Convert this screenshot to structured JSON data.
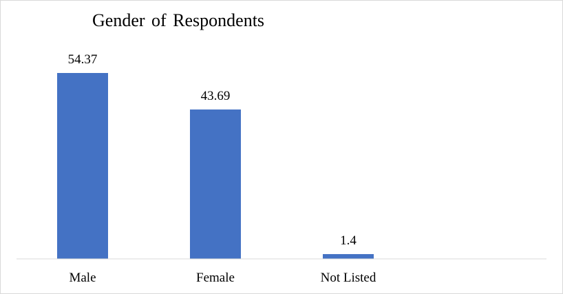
{
  "chart_data": {
    "type": "bar",
    "title": "Gender of Respondents",
    "categories": [
      "Male",
      "Female",
      "Not Listed"
    ],
    "values": [
      54.37,
      43.69,
      1.4
    ],
    "data_labels": [
      "54.37",
      "43.69",
      "1.4"
    ],
    "xlabel": "",
    "ylabel": "",
    "ylim": [
      0,
      60
    ],
    "grid": false,
    "legend": "none",
    "bar_color": "#4472C4"
  }
}
